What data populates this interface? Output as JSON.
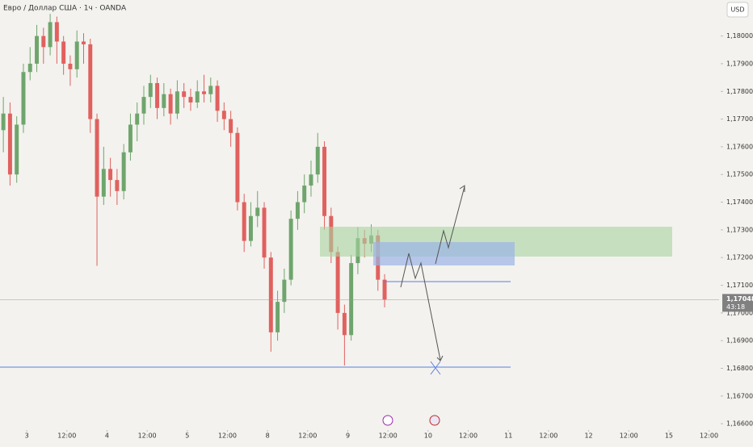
{
  "chart_data": {
    "type": "candlestick",
    "title": "Евро / Доллар США · 1ч · OANDA",
    "currency": "USD",
    "up_color": "#6fa56d",
    "down_color": "#e0615f",
    "x": [
      0,
      2,
      4,
      6,
      8,
      10,
      12,
      14,
      16,
      18,
      20,
      22,
      24,
      26,
      28,
      30,
      32,
      34,
      36,
      38,
      40,
      42,
      44,
      46,
      48,
      50,
      52,
      54,
      56,
      58,
      60,
      62,
      64,
      66,
      68,
      70,
      72,
      74,
      76,
      78,
      80,
      82,
      84,
      86,
      88,
      90,
      92,
      94,
      96,
      98,
      100,
      102,
      104,
      106,
      108,
      110,
      112,
      114
    ],
    "open": [
      1.1766,
      1.1772,
      1.175,
      1.1768,
      1.1787,
      1.179,
      1.18,
      1.1796,
      1.1805,
      1.1798,
      1.179,
      1.1788,
      1.1798,
      1.1797,
      1.177,
      1.1742,
      1.1752,
      1.1748,
      1.1744,
      1.1758,
      1.1768,
      1.1772,
      1.1778,
      1.1783,
      1.1774,
      1.1779,
      1.1772,
      1.178,
      1.1778,
      1.1776,
      1.178,
      1.1779,
      1.1782,
      1.1773,
      1.177,
      1.1765,
      1.174,
      1.1726,
      1.1735,
      1.1738,
      1.172,
      1.1693,
      1.1704,
      1.1712,
      1.1734,
      1.174,
      1.1746,
      1.175,
      1.176,
      1.1735,
      1.1722,
      1.17,
      1.1692,
      1.1718,
      1.1727,
      1.1725,
      1.1728,
      1.1712
    ],
    "high": [
      1.1778,
      1.1776,
      1.1771,
      1.179,
      1.1796,
      1.1804,
      1.1803,
      1.1808,
      1.1807,
      1.18,
      1.1793,
      1.1802,
      1.1801,
      1.1799,
      1.1772,
      1.176,
      1.1756,
      1.1752,
      1.1761,
      1.1772,
      1.1776,
      1.1782,
      1.1786,
      1.1785,
      1.1783,
      1.1781,
      1.1784,
      1.1783,
      1.1781,
      1.1784,
      1.1786,
      1.1785,
      1.1784,
      1.1776,
      1.1773,
      1.1767,
      1.1743,
      1.174,
      1.1744,
      1.174,
      1.1722,
      1.1708,
      1.1716,
      1.1737,
      1.1744,
      1.175,
      1.1755,
      1.1765,
      1.1762,
      1.1738,
      1.1724,
      1.1703,
      1.1721,
      1.1731,
      1.173,
      1.1732,
      1.173,
      1.1714
    ],
    "low": [
      1.1758,
      1.1746,
      1.1747,
      1.1765,
      1.1784,
      1.1787,
      1.179,
      1.1793,
      1.179,
      1.1786,
      1.1782,
      1.1785,
      1.179,
      1.1765,
      1.1717,
      1.1739,
      1.1742,
      1.1739,
      1.1741,
      1.1755,
      1.1762,
      1.1768,
      1.1774,
      1.177,
      1.1771,
      1.1768,
      1.177,
      1.1774,
      1.1773,
      1.1774,
      1.1776,
      1.1776,
      1.1769,
      1.1766,
      1.176,
      1.1737,
      1.1722,
      1.1724,
      1.1731,
      1.1716,
      1.1686,
      1.169,
      1.17,
      1.171,
      1.173,
      1.1736,
      1.1742,
      1.1747,
      1.173,
      1.1718,
      1.1694,
      1.1681,
      1.169,
      1.1714,
      1.172,
      1.1722,
      1.1708,
      1.1702
    ],
    "close": [
      1.1772,
      1.175,
      1.1768,
      1.1787,
      1.179,
      1.18,
      1.1796,
      1.1805,
      1.1798,
      1.179,
      1.1788,
      1.1798,
      1.1797,
      1.177,
      1.1742,
      1.1752,
      1.1748,
      1.1744,
      1.1758,
      1.1768,
      1.1772,
      1.1778,
      1.1783,
      1.1774,
      1.1779,
      1.1772,
      1.178,
      1.1778,
      1.1776,
      1.178,
      1.1779,
      1.1782,
      1.1773,
      1.177,
      1.1765,
      1.174,
      1.1726,
      1.1735,
      1.1738,
      1.172,
      1.1693,
      1.1704,
      1.1712,
      1.1734,
      1.174,
      1.1746,
      1.175,
      1.176,
      1.1735,
      1.1722,
      1.17,
      1.1692,
      1.1718,
      1.1727,
      1.1725,
      1.1728,
      1.1712,
      1.17048
    ],
    "last_price": {
      "value": 1.17048,
      "label": "1,17048"
    },
    "countdown": "43:18",
    "xlim": [
      -1,
      214
    ],
    "xticks": [
      {
        "value": 7,
        "label": "3"
      },
      {
        "value": 19,
        "label": "12:00"
      },
      {
        "value": 31,
        "label": "4"
      },
      {
        "value": 43,
        "label": "12:00"
      },
      {
        "value": 55,
        "label": "5"
      },
      {
        "value": 67,
        "label": "12:00"
      },
      {
        "value": 79,
        "label": "8"
      },
      {
        "value": 91,
        "label": "12:00"
      },
      {
        "value": 103,
        "label": "9"
      },
      {
        "value": 115,
        "label": "12:00"
      },
      {
        "value": 127,
        "label": "10"
      },
      {
        "value": 139,
        "label": "12:00"
      },
      {
        "value": 151,
        "label": "11"
      },
      {
        "value": 163,
        "label": "12:00"
      },
      {
        "value": 175,
        "label": "12"
      },
      {
        "value": 187,
        "label": "12:00"
      },
      {
        "value": 199,
        "label": "15"
      },
      {
        "value": 211,
        "label": "12:00"
      }
    ],
    "ylim": [
      1.1658,
      1.1813
    ],
    "yticks": [
      {
        "value": 1.166,
        "label": "1,16600"
      },
      {
        "value": 1.167,
        "label": "1,16700"
      },
      {
        "value": 1.168,
        "label": "1,16800"
      },
      {
        "value": 1.169,
        "label": "1,16900"
      },
      {
        "value": 1.17,
        "label": "1,17000"
      },
      {
        "value": 1.171,
        "label": "1,17100"
      },
      {
        "value": 1.172,
        "label": "1,17200"
      },
      {
        "value": 1.173,
        "label": "1,17300"
      },
      {
        "value": 1.174,
        "label": "1,17400"
      },
      {
        "value": 1.175,
        "label": "1,17500"
      },
      {
        "value": 1.176,
        "label": "1,17600"
      },
      {
        "value": 1.177,
        "label": "1,17700"
      },
      {
        "value": 1.178,
        "label": "1,17800"
      },
      {
        "value": 1.179,
        "label": "1,17900"
      },
      {
        "value": 1.18,
        "label": "1,18000"
      }
    ]
  }
}
